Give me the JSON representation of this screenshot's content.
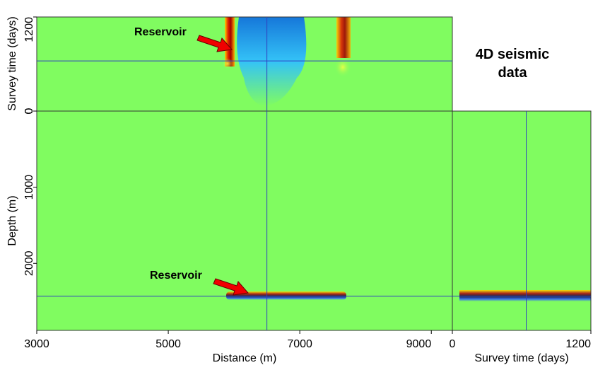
{
  "chart_data": {
    "type": "seismic-cube",
    "title": "4D seismic data",
    "xlabel": "Distance (m)",
    "xlim": [
      3000,
      9320
    ],
    "xticks": [
      3000,
      5000,
      7000,
      9000
    ],
    "ylabel": "Depth (m)",
    "ylim": [
      0,
      2880
    ],
    "yticks": [
      0,
      1000,
      2000
    ],
    "y2label": "Survey time (days)",
    "y2lim": [
      0,
      1200
    ],
    "y2ticks": [
      0,
      1200
    ],
    "annotations": [
      "Reservoir",
      "Reservoir"
    ],
    "crosshair": {
      "distance": 6500,
      "depth": 2430,
      "time": 640
    },
    "color": "#80fc60"
  }
}
